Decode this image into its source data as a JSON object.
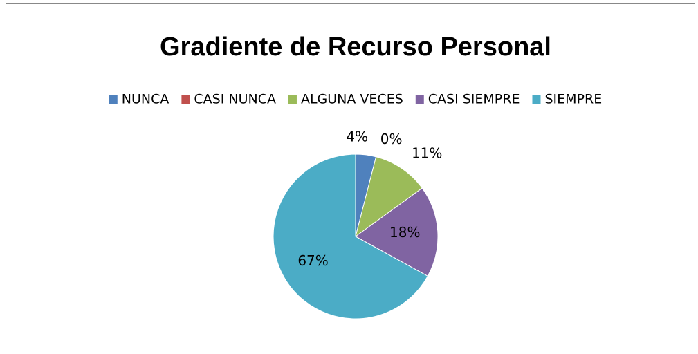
{
  "chart_data": {
    "type": "pie",
    "title": "Gradiente de Recurso Personal",
    "categories": [
      "NUNCA",
      "CASI NUNCA",
      "ALGUNA VECES",
      "CASI SIEMPRE",
      "SIEMPRE"
    ],
    "values": [
      4,
      0,
      11,
      18,
      67
    ],
    "value_labels": [
      "4%",
      "0%",
      "11%",
      "18%",
      "67%"
    ],
    "colors": [
      "#4f81bd",
      "#c0504d",
      "#9bbb59",
      "#8064a2",
      "#4bacc6"
    ],
    "legend": "top"
  }
}
